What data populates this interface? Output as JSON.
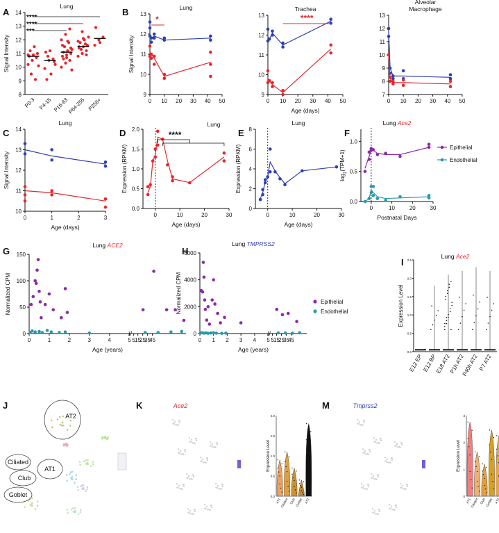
{
  "figure": {
    "title": "Multi-panel figure: Ace2 / TMPRSS2 expression across age and cell types"
  },
  "colors": {
    "red": "#e8262a",
    "blue": "#2e3fb5",
    "purple": "#8a2aa8",
    "teal": "#2a9aaa",
    "black": "#111111",
    "gray": "#8a8a8a"
  },
  "panels": [
    {
      "id": "A",
      "letter": "A",
      "title": "Lung",
      "type": "strip",
      "ylabel": "Signal Intensity",
      "ylim": [
        8,
        14
      ],
      "yticks": [
        "8",
        "9",
        "10",
        "11",
        "12",
        "13",
        "14"
      ],
      "categories": [
        "P0-3",
        "P4-15",
        "P16-63",
        "P64-255",
        "P256+"
      ],
      "groups": [
        {
          "median": 10.8,
          "values": [
            10.2,
            10.5,
            10.7,
            10.8,
            10.9,
            11.0,
            11.2,
            11.5,
            10.1,
            9.5,
            9.1,
            10.9
          ]
        },
        {
          "median": 10.5,
          "values": [
            9.9,
            10.5,
            10.6,
            11.1,
            11.2,
            10.4,
            9.1,
            9.5,
            10.2,
            10.8
          ]
        },
        {
          "median": 11.1,
          "values": [
            10.0,
            10.3,
            10.5,
            10.8,
            10.9,
            11.0,
            11.1,
            11.2,
            11.3,
            11.5,
            11.8,
            12.0,
            12.4,
            12.8,
            11.6,
            10.7,
            11.4,
            10.6,
            11.9,
            9.8
          ]
        },
        {
          "median": 11.5,
          "values": [
            10.8,
            11.0,
            11.2,
            11.4,
            11.5,
            11.6,
            11.8,
            12.0,
            12.2,
            11.3,
            11.7,
            11.9,
            12.6,
            10.9,
            11.5,
            12.1
          ]
        },
        {
          "median": 12.1,
          "values": [
            11.6,
            12.0,
            12.2,
            12.9,
            11.8
          ]
        }
      ],
      "significance": [
        "****",
        "****",
        "***"
      ]
    },
    {
      "id": "B1",
      "letter": "B",
      "title": "Lung",
      "type": "line",
      "ylabel": "Signal Intensity",
      "xlabel": "",
      "xlim": [
        0,
        50
      ],
      "ylim": [
        9,
        13
      ],
      "xticks": [
        "0",
        "10",
        "20",
        "30",
        "40",
        "50"
      ],
      "yticks": [
        "9",
        "10",
        "11",
        "12",
        "13"
      ],
      "annotation": "*",
      "series": [
        {
          "name": "blue",
          "line_x": [
            0,
            1,
            3,
            10,
            42
          ],
          "line_y": [
            12.0,
            11.8,
            11.9,
            11.7,
            11.8
          ],
          "points_x": [
            0,
            0,
            0,
            1,
            1,
            3,
            3,
            10,
            10,
            42,
            42
          ],
          "points_y": [
            12.6,
            12.3,
            11.9,
            11.8,
            11.6,
            12.0,
            11.8,
            11.8,
            11.7,
            11.9,
            11.7
          ]
        },
        {
          "name": "red",
          "line_x": [
            0,
            1,
            3,
            10,
            42
          ],
          "line_y": [
            11.1,
            11.0,
            10.8,
            9.9,
            10.6
          ],
          "points_x": [
            0,
            0,
            1,
            1,
            3,
            3,
            10,
            10,
            42,
            42,
            42
          ],
          "points_y": [
            11.4,
            10.9,
            11.0,
            10.8,
            10.9,
            10.5,
            10.0,
            9.8,
            11.1,
            10.5,
            9.9
          ]
        }
      ]
    },
    {
      "id": "B2",
      "letter": "",
      "title": "Trachea",
      "type": "line",
      "ylabel": "",
      "xlabel": "Age (days)",
      "xlim": [
        0,
        50
      ],
      "ylim": [
        9,
        13
      ],
      "xticks": [
        "0",
        "10",
        "20",
        "30",
        "40",
        "50"
      ],
      "yticks": [
        "9",
        "10",
        "11",
        "12",
        "13"
      ],
      "annotation": "****",
      "series": [
        {
          "name": "blue",
          "line_x": [
            0,
            1,
            3,
            10,
            42
          ],
          "line_y": [
            11.9,
            11.8,
            12.1,
            11.5,
            12.7
          ],
          "points_x": [
            0,
            0,
            1,
            3,
            3,
            10,
            10,
            42,
            42
          ],
          "points_y": [
            12.3,
            11.7,
            11.8,
            12.2,
            12.0,
            11.6,
            11.4,
            12.8,
            12.6
          ]
        },
        {
          "name": "red",
          "line_x": [
            0,
            1,
            3,
            10,
            42
          ],
          "line_y": [
            9.8,
            9.7,
            9.5,
            9.1,
            11.3
          ],
          "points_x": [
            0,
            0,
            1,
            3,
            3,
            10,
            10,
            42,
            42
          ],
          "points_y": [
            10.2,
            9.6,
            9.7,
            9.6,
            9.4,
            9.2,
            9.0,
            11.5,
            11.1
          ]
        }
      ]
    },
    {
      "id": "B3",
      "letter": "",
      "title": "Alveolar Macrophage",
      "type": "line",
      "ylabel": "",
      "xlabel": "",
      "xlim": [
        0,
        50
      ],
      "ylim": [
        7,
        13
      ],
      "xticks": [
        "0",
        "10",
        "20",
        "30",
        "40",
        "50"
      ],
      "yticks": [
        "7",
        "8",
        "9",
        "10",
        "11",
        "12",
        "13"
      ],
      "annotation": "",
      "series": [
        {
          "name": "blue",
          "line_x": [
            0,
            1,
            3,
            10,
            42
          ],
          "line_y": [
            11.8,
            9.0,
            8.4,
            8.4,
            8.3
          ],
          "points_x": [
            0,
            0,
            1,
            1,
            3,
            3,
            10,
            10,
            42,
            42
          ],
          "points_y": [
            12.0,
            11.4,
            9.0,
            8.6,
            8.4,
            8.2,
            8.8,
            8.2,
            8.5,
            8.2
          ]
        },
        {
          "name": "red",
          "line_x": [
            0,
            1,
            3,
            10,
            42
          ],
          "line_y": [
            10.0,
            8.2,
            7.9,
            7.9,
            7.8
          ],
          "points_x": [
            0,
            1,
            1,
            3,
            3,
            10,
            10,
            42,
            42
          ],
          "points_y": [
            10.0,
            8.3,
            8.0,
            8.0,
            7.8,
            8.1,
            7.7,
            8.0,
            7.6
          ]
        }
      ]
    },
    {
      "id": "C",
      "letter": "C",
      "title": "Lung",
      "type": "line",
      "ylabel": "Signal Intensity",
      "xlabel": "Age (days)",
      "xlim": [
        0,
        3
      ],
      "ylim": [
        10,
        14
      ],
      "xticks": [
        "0",
        "1",
        "2",
        "3"
      ],
      "yticks": [
        "10",
        "11",
        "12",
        "13",
        "14"
      ],
      "annotation": "",
      "series": [
        {
          "name": "blue",
          "line_x": [
            0,
            1,
            3
          ],
          "line_y": [
            13.0,
            12.7,
            12.3
          ],
          "points_x": [
            0,
            0,
            1,
            1,
            3,
            3
          ],
          "points_y": [
            13.3,
            12.8,
            13.0,
            12.5,
            12.4,
            12.2
          ]
        },
        {
          "name": "red",
          "line_x": [
            0,
            1,
            3
          ],
          "line_y": [
            11.0,
            10.9,
            10.5
          ],
          "points_x": [
            0,
            0,
            0,
            1,
            1,
            3,
            3
          ],
          "points_y": [
            11.2,
            10.8,
            10.5,
            11.0,
            10.8,
            10.6,
            10.2
          ]
        }
      ]
    },
    {
      "id": "D",
      "letter": "D",
      "title": "Lung",
      "type": "line",
      "ylabel": "Expression (RPKM)",
      "xlabel": "Age (days)",
      "xlim": [
        -5,
        30
      ],
      "ylim": [
        0,
        2.0
      ],
      "xticks": [
        "0",
        "10",
        "20",
        "30"
      ],
      "yticks": [
        "0.0",
        "0.5",
        "1.0",
        "1.5",
        "2.0"
      ],
      "annotation": "****",
      "vline": 0,
      "series": [
        {
          "name": "red",
          "line_x": [
            -3,
            -2,
            -1,
            0,
            1,
            3,
            5,
            7,
            14,
            28
          ],
          "line_y": [
            0.4,
            0.55,
            1.2,
            1.35,
            1.8,
            1.75,
            1.2,
            0.75,
            0.65,
            1.3
          ],
          "points_x": [
            -3,
            -3,
            -2,
            -1,
            0,
            0,
            1,
            1,
            3,
            5,
            7,
            7,
            14,
            28,
            28
          ],
          "points_y": [
            0.35,
            0.55,
            0.6,
            1.2,
            1.3,
            1.5,
            1.6,
            1.95,
            1.75,
            1.1,
            0.8,
            0.7,
            0.65,
            1.4,
            1.2
          ]
        }
      ]
    },
    {
      "id": "E",
      "letter": "E",
      "title": "Lung",
      "type": "line",
      "ylabel": "Expression (RPKM)",
      "xlabel": "Age (days)",
      "xlim": [
        -5,
        30
      ],
      "ylim": [
        0,
        8
      ],
      "xticks": [
        "0",
        "10",
        "20",
        "30"
      ],
      "yticks": [
        "0",
        "2",
        "4",
        "6",
        "8"
      ],
      "annotation": "",
      "vline": 0,
      "series": [
        {
          "name": "blue",
          "line_x": [
            -3,
            -2,
            -1,
            0,
            1,
            3,
            5,
            7,
            14,
            28
          ],
          "line_y": [
            1.0,
            1.6,
            2.7,
            3.2,
            4.7,
            3.8,
            3.1,
            2.5,
            3.8,
            4.2
          ],
          "points_x": [
            -3,
            -2,
            -2,
            -1,
            -1,
            0,
            1,
            1,
            3,
            5,
            7,
            14,
            28
          ],
          "points_y": [
            0.9,
            1.4,
            1.9,
            2.6,
            2.9,
            3.2,
            6.0,
            3.7,
            3.7,
            3.0,
            2.4,
            3.8,
            4.2
          ]
        }
      ]
    },
    {
      "id": "F",
      "letter": "F",
      "title": "Lung Ace2",
      "type": "line",
      "ylabel": "log2(TPM+1)",
      "xlabel": "Postnatal Days",
      "xlim": [
        -5,
        30
      ],
      "ylim": [
        0,
        1.2
      ],
      "xticks": [
        "0",
        "10",
        "20",
        "30"
      ],
      "yticks": [
        "0.0",
        "0.5",
        "1.0"
      ],
      "annotation": "",
      "vline": 0,
      "legend": [
        "Epithelial",
        "Endothelial"
      ],
      "series": [
        {
          "name": "purple",
          "line_x": [
            -3,
            -1,
            0,
            1,
            3,
            7,
            14,
            28
          ],
          "line_y": [
            0.55,
            0.75,
            0.85,
            0.85,
            0.8,
            0.78,
            0.78,
            0.9
          ],
          "points_x": [
            -3,
            -1,
            -1,
            0,
            0,
            1,
            3,
            7,
            14,
            28,
            28
          ],
          "points_y": [
            0.5,
            0.7,
            0.82,
            0.85,
            0.88,
            0.86,
            0.78,
            0.8,
            0.75,
            0.9,
            0.95
          ]
        },
        {
          "name": "teal",
          "line_x": [
            -3,
            -1,
            0,
            1,
            3,
            7,
            14,
            28
          ],
          "line_y": [
            0.0,
            0.05,
            0.2,
            0.15,
            0.08,
            0.05,
            0.06,
            0.08
          ],
          "points_x": [
            -3,
            -1,
            0,
            0,
            1,
            1,
            3,
            7,
            14,
            28,
            28
          ],
          "points_y": [
            0.0,
            0.05,
            0.25,
            0.15,
            0.25,
            0.1,
            0.05,
            0.02,
            0.08,
            0.1,
            0.06
          ]
        }
      ]
    },
    {
      "id": "G",
      "letter": "G",
      "title": "Lung ACE2",
      "type": "scatter",
      "ylabel": "Normalized CPM",
      "xlabel": "Age (years)",
      "ylim": [
        0,
        150
      ],
      "yticks": [
        "0",
        "50",
        "100",
        "150"
      ],
      "xticks": [
        "0",
        "1",
        "2",
        "3",
        "4",
        "5",
        "5",
        "15",
        "25",
        "35",
        "45"
      ],
      "series": [
        {
          "name": "purple",
          "x": [
            0.1,
            0.2,
            0.3,
            0.35,
            0.4,
            0.45,
            0.5,
            0.55,
            0.6,
            0.8,
            1.0,
            1.2,
            1.6,
            1.8,
            1.9,
            5.5,
            6.0,
            6.6,
            7.0,
            7.4
          ],
          "y": [
            55,
            70,
            100,
            95,
            120,
            140,
            80,
            60,
            30,
            55,
            75,
            45,
            30,
            85,
            40,
            45,
            118,
            45,
            45,
            25
          ]
        },
        {
          "name": "teal",
          "x": [
            0.05,
            0.15,
            0.3,
            0.5,
            0.65,
            0.9,
            1.1,
            1.5,
            1.8,
            3.0,
            5.6,
            6.2,
            6.8,
            7.3
          ],
          "y": [
            2,
            5,
            3,
            4,
            2,
            6,
            3,
            2,
            3,
            1,
            2,
            2,
            3,
            4
          ]
        }
      ]
    },
    {
      "id": "H",
      "letter": "H",
      "title": "Lung TMPRSS2",
      "type": "scatter",
      "ylabel": "Normalized CPM",
      "xlabel": "Age (years)",
      "ylim": [
        0,
        6000
      ],
      "yticks": [
        "0",
        "2000",
        "4000",
        "6000"
      ],
      "xticks": [
        "0",
        "1",
        "2",
        "3",
        "4",
        "5",
        "5",
        "15",
        "25",
        "35",
        "45"
      ],
      "legend": [
        "Epithelial",
        "Endothelial"
      ],
      "series": [
        {
          "name": "purple",
          "x": [
            0.1,
            0.2,
            0.25,
            0.3,
            0.35,
            0.4,
            0.5,
            0.6,
            0.7,
            0.9,
            1.0,
            1.1,
            1.3,
            1.5,
            1.8,
            3.0,
            5.4,
            5.8,
            6.2,
            6.8
          ],
          "y": [
            3200,
            3100,
            5300,
            4200,
            2500,
            1800,
            1000,
            2000,
            700,
            2500,
            4000,
            2200,
            1500,
            800,
            1200,
            800,
            1800,
            1400,
            1500,
            900
          ]
        },
        {
          "name": "teal",
          "x": [
            0.05,
            0.15,
            0.3,
            0.45,
            0.6,
            0.8,
            1.0,
            1.2,
            1.6,
            1.9,
            5.5,
            6.0,
            6.5,
            7.0
          ],
          "y": [
            40,
            60,
            30,
            50,
            20,
            40,
            60,
            30,
            20,
            30,
            50,
            40,
            30,
            60
          ]
        }
      ]
    },
    {
      "id": "I",
      "letter": "I",
      "title": "Lung Ace2",
      "type": "violin",
      "ylabel": "Expression Level",
      "xlabel": "",
      "ylim": [
        0,
        2.5
      ],
      "yticks": [
        "0.0",
        "0.5",
        "1.0",
        "1.5",
        "2.0",
        "2.5"
      ],
      "categories": [
        "E12 EP",
        "E12 BP",
        "E18 AT2",
        "P1h AT2",
        "P40h AT2",
        "P7 AT2"
      ]
    },
    {
      "id": "J",
      "letter": "J",
      "type": "umap",
      "clusters": [
        "AT2",
        "Ciliated",
        "Club",
        "AT1",
        "Goblet"
      ]
    },
    {
      "id": "K",
      "letter": "K",
      "type": "umap-feature",
      "gene": "Ace2",
      "violin_ylabel": "Expression Level",
      "violin_ylim": [
        0,
        2.0
      ],
      "violin_yticks": [
        "0.0",
        "0.5",
        "1.0",
        "1.5",
        "2.0"
      ],
      "violin_categories": [
        "AT1",
        "Ciliated",
        "Club",
        "Goblet",
        "AT2"
      ]
    },
    {
      "id": "M",
      "letter": "M",
      "type": "umap-feature",
      "gene": "Tmprss2",
      "violin_ylabel": "Expression Level",
      "violin_ylim": [
        0,
        3.0
      ],
      "violin_yticks": [
        "0",
        "1",
        "2",
        "3"
      ],
      "violin_categories": [
        "AT1",
        "Ciliated",
        "Club",
        "Goblet",
        "AT2"
      ]
    }
  ]
}
